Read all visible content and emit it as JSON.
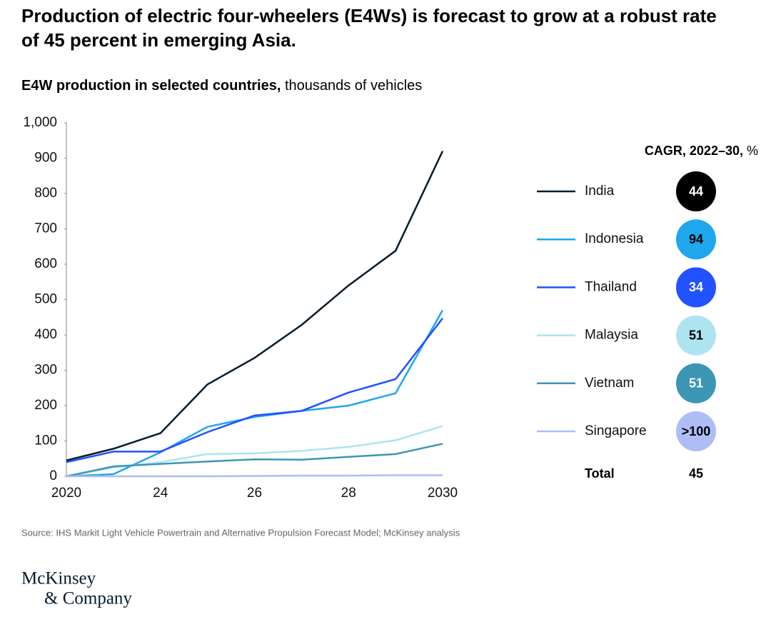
{
  "chart_data": {
    "type": "line",
    "title": [
      "Production of electric four-wheelers (E4Ws) is forecast to grow at a robust rate",
      "of 45 percent in emerging Asia."
    ],
    "subtitle": {
      "bold": "E4W production in selected countries,",
      "normal": " thousands of vehicles"
    },
    "categories": [
      "2020",
      null,
      "24",
      null,
      "26",
      null,
      "28",
      null,
      "2030"
    ],
    "ylim": [
      0,
      1000
    ],
    "yticks": [
      0,
      100,
      200,
      300,
      400,
      500,
      600,
      700,
      800,
      900,
      {
        "value": 1000,
        "label": "1,000"
      }
    ],
    "grid": false,
    "series": [
      {
        "name": "India",
        "color": "#051c2c",
        "bubble_color": "#000000",
        "text_color": "#ffffff",
        "cagr": 44,
        "values": [
          45,
          78,
          122,
          260,
          335,
          428,
          540,
          638,
          920
        ]
      },
      {
        "name": "Indonesia",
        "color": "#1ea7ec",
        "bubble_color": "#1ea7ec",
        "text_color": "#000000",
        "cagr": 94,
        "values": [
          0,
          6,
          68,
          140,
          168,
          185,
          200,
          235,
          470
        ]
      },
      {
        "name": "Thailand",
        "color": "#2251ff",
        "bubble_color": "#2251ff",
        "text_color": "#ffffff",
        "cagr": 34,
        "values": [
          40,
          70,
          70,
          125,
          172,
          185,
          237,
          275,
          447
        ]
      },
      {
        "name": "Malaysia",
        "color": "#aee4f0",
        "bubble_color": "#aee4f0",
        "text_color": "#000000",
        "cagr": 51,
        "values": [
          0,
          25,
          40,
          63,
          65,
          72,
          83,
          102,
          142
        ]
      },
      {
        "name": "Vietnam",
        "color": "#3c96b4",
        "bubble_color": "#3c96b4",
        "text_color": "#ffffff",
        "cagr": 51,
        "values": [
          0,
          28,
          35,
          42,
          48,
          47,
          55,
          63,
          92
        ]
      },
      {
        "name": "Singapore",
        "color": "#afbdf7",
        "bubble_color": "#afbdf7",
        "text_color": "#000000",
        "cagr": ">100",
        "values": [
          0,
          0,
          0,
          0,
          1,
          2,
          2,
          3,
          3
        ]
      }
    ],
    "legend_header": {
      "bold": "CAGR, 2022–30,",
      "normal": " %"
    },
    "total": {
      "label": "Total",
      "value": 45
    },
    "source": "Source: IHS Markit Light Vehicle Powertrain and Alternative Propulsion Forecast Model; McKinsey analysis",
    "logo": [
      "McKinsey",
      "& Company"
    ]
  }
}
